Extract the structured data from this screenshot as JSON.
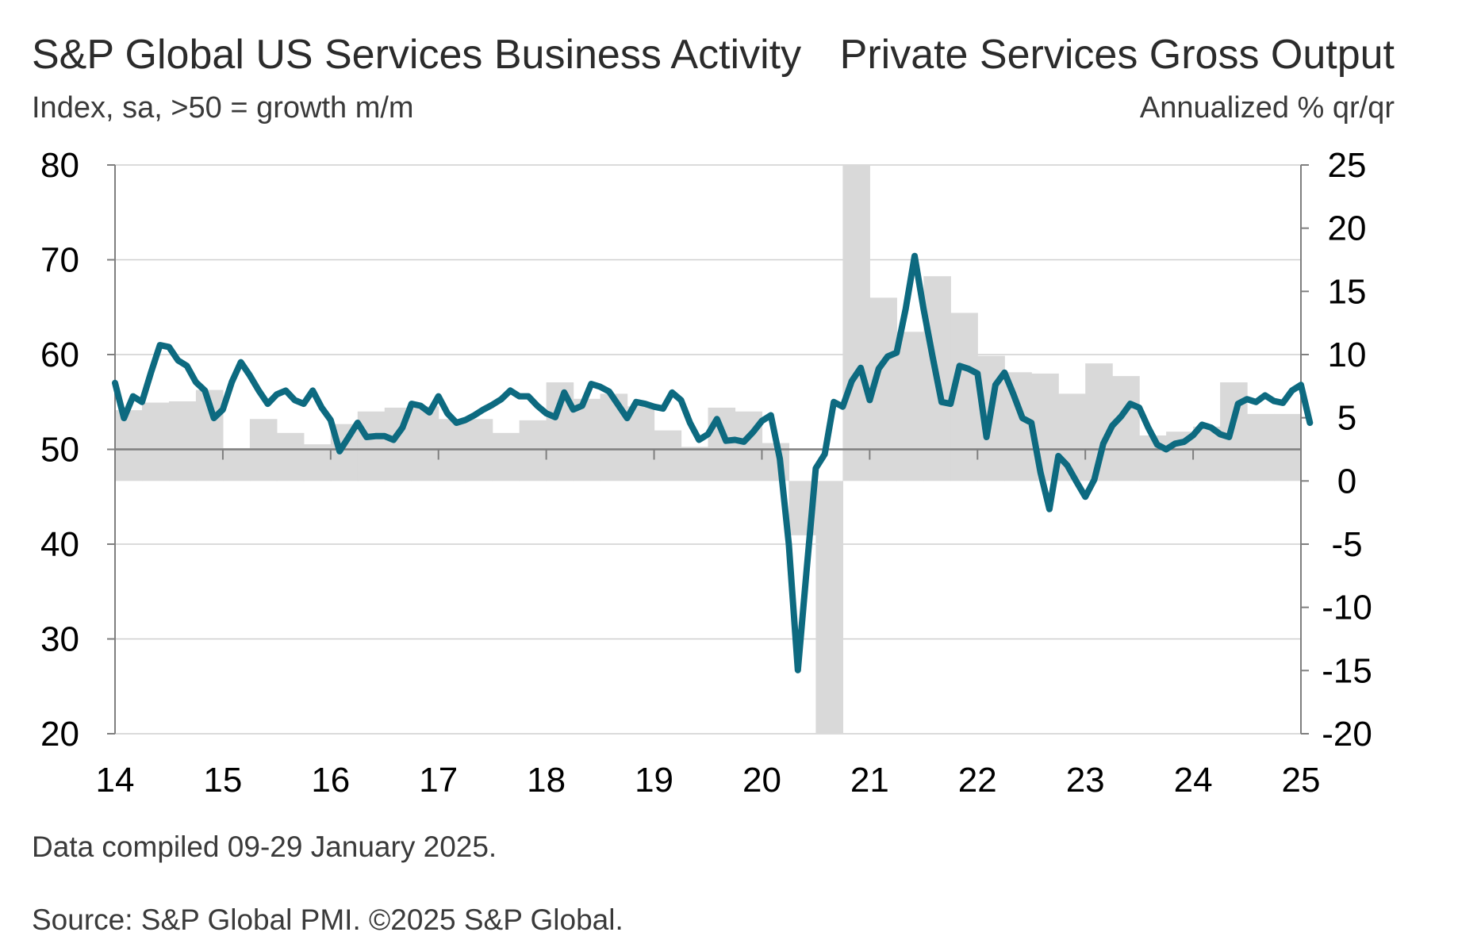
{
  "chart_data": {
    "type": "line+bar",
    "series": [
      {
        "axis": "left",
        "kind": "line",
        "color": "#0d6a80",
        "values": [
          {
            "x": "2014-01",
            "y": 57.0
          },
          {
            "x": "2014-02",
            "y": 53.3
          },
          {
            "x": "2014-03",
            "y": 55.6
          },
          {
            "x": "2014-04",
            "y": 55.0
          },
          {
            "x": "2014-05",
            "y": 58.1
          },
          {
            "x": "2014-06",
            "y": 61.0
          },
          {
            "x": "2014-07",
            "y": 60.8
          },
          {
            "x": "2014-08",
            "y": 59.4
          },
          {
            "x": "2014-09",
            "y": 58.8
          },
          {
            "x": "2014-10",
            "y": 57.1
          },
          {
            "x": "2014-11",
            "y": 56.2
          },
          {
            "x": "2014-12",
            "y": 53.3
          },
          {
            "x": "2015-01",
            "y": 54.2
          },
          {
            "x": "2015-02",
            "y": 57.1
          },
          {
            "x": "2015-03",
            "y": 59.2
          },
          {
            "x": "2015-04",
            "y": 57.8
          },
          {
            "x": "2015-05",
            "y": 56.2
          },
          {
            "x": "2015-06",
            "y": 54.8
          },
          {
            "x": "2015-07",
            "y": 55.8
          },
          {
            "x": "2015-08",
            "y": 56.2
          },
          {
            "x": "2015-09",
            "y": 55.2
          },
          {
            "x": "2015-10",
            "y": 54.8
          },
          {
            "x": "2015-11",
            "y": 56.2
          },
          {
            "x": "2015-12",
            "y": 54.4
          },
          {
            "x": "2016-01",
            "y": 53.1
          },
          {
            "x": "2016-02",
            "y": 49.8
          },
          {
            "x": "2016-03",
            "y": 51.3
          },
          {
            "x": "2016-04",
            "y": 52.8
          },
          {
            "x": "2016-05",
            "y": 51.3
          },
          {
            "x": "2016-06",
            "y": 51.4
          },
          {
            "x": "2016-07",
            "y": 51.4
          },
          {
            "x": "2016-08",
            "y": 51.0
          },
          {
            "x": "2016-09",
            "y": 52.3
          },
          {
            "x": "2016-10",
            "y": 54.8
          },
          {
            "x": "2016-11",
            "y": 54.6
          },
          {
            "x": "2016-12",
            "y": 53.9
          },
          {
            "x": "2017-01",
            "y": 55.6
          },
          {
            "x": "2017-02",
            "y": 53.8
          },
          {
            "x": "2017-03",
            "y": 52.8
          },
          {
            "x": "2017-04",
            "y": 53.1
          },
          {
            "x": "2017-05",
            "y": 53.6
          },
          {
            "x": "2017-06",
            "y": 54.2
          },
          {
            "x": "2017-07",
            "y": 54.7
          },
          {
            "x": "2017-08",
            "y": 55.3
          },
          {
            "x": "2017-09",
            "y": 56.2
          },
          {
            "x": "2017-10",
            "y": 55.6
          },
          {
            "x": "2017-11",
            "y": 55.6
          },
          {
            "x": "2017-12",
            "y": 54.6
          },
          {
            "x": "2018-01",
            "y": 53.8
          },
          {
            "x": "2018-02",
            "y": 53.4
          },
          {
            "x": "2018-03",
            "y": 56.0
          },
          {
            "x": "2018-04",
            "y": 54.2
          },
          {
            "x": "2018-05",
            "y": 54.6
          },
          {
            "x": "2018-06",
            "y": 56.9
          },
          {
            "x": "2018-07",
            "y": 56.6
          },
          {
            "x": "2018-08",
            "y": 56.1
          },
          {
            "x": "2018-09",
            "y": 54.7
          },
          {
            "x": "2018-10",
            "y": 53.3
          },
          {
            "x": "2018-11",
            "y": 55.0
          },
          {
            "x": "2018-12",
            "y": 54.8
          },
          {
            "x": "2019-01",
            "y": 54.5
          },
          {
            "x": "2019-02",
            "y": 54.3
          },
          {
            "x": "2019-03",
            "y": 56.0
          },
          {
            "x": "2019-04",
            "y": 55.2
          },
          {
            "x": "2019-05",
            "y": 52.8
          },
          {
            "x": "2019-06",
            "y": 51.0
          },
          {
            "x": "2019-07",
            "y": 51.6
          },
          {
            "x": "2019-08",
            "y": 53.2
          },
          {
            "x": "2019-09",
            "y": 50.9
          },
          {
            "x": "2019-10",
            "y": 51.0
          },
          {
            "x": "2019-11",
            "y": 50.8
          },
          {
            "x": "2019-12",
            "y": 51.8
          },
          {
            "x": "2020-01",
            "y": 53.0
          },
          {
            "x": "2020-02",
            "y": 53.6
          },
          {
            "x": "2020-03",
            "y": 49.0
          },
          {
            "x": "2020-04",
            "y": 40.0
          },
          {
            "x": "2020-05",
            "y": 26.7
          },
          {
            "x": "2020-06",
            "y": 37.5
          },
          {
            "x": "2020-07",
            "y": 48.0
          },
          {
            "x": "2020-08",
            "y": 49.5
          },
          {
            "x": "2020-09",
            "y": 55.0
          },
          {
            "x": "2020-10",
            "y": 54.5
          },
          {
            "x": "2020-11",
            "y": 57.2
          },
          {
            "x": "2020-12",
            "y": 58.6
          },
          {
            "x": "2021-01",
            "y": 55.2
          },
          {
            "x": "2021-02",
            "y": 58.5
          },
          {
            "x": "2021-03",
            "y": 59.8
          },
          {
            "x": "2021-04",
            "y": 60.2
          },
          {
            "x": "2021-05",
            "y": 64.8
          },
          {
            "x": "2021-06",
            "y": 70.4
          },
          {
            "x": "2021-07",
            "y": 64.8
          },
          {
            "x": "2021-08",
            "y": 59.8
          },
          {
            "x": "2021-09",
            "y": 55.0
          },
          {
            "x": "2021-10",
            "y": 54.8
          },
          {
            "x": "2021-11",
            "y": 58.8
          },
          {
            "x": "2021-12",
            "y": 58.5
          },
          {
            "x": "2022-01",
            "y": 58.0
          },
          {
            "x": "2022-02",
            "y": 51.3
          },
          {
            "x": "2022-03",
            "y": 56.8
          },
          {
            "x": "2022-04",
            "y": 58.1
          },
          {
            "x": "2022-05",
            "y": 55.8
          },
          {
            "x": "2022-06",
            "y": 53.3
          },
          {
            "x": "2022-07",
            "y": 52.8
          },
          {
            "x": "2022-08",
            "y": 47.6
          },
          {
            "x": "2022-09",
            "y": 43.7
          },
          {
            "x": "2022-10",
            "y": 49.3
          },
          {
            "x": "2022-11",
            "y": 48.3
          },
          {
            "x": "2022-12",
            "y": 46.6
          },
          {
            "x": "2023-01",
            "y": 45.0
          },
          {
            "x": "2023-02",
            "y": 46.8
          },
          {
            "x": "2023-03",
            "y": 50.6
          },
          {
            "x": "2023-04",
            "y": 52.5
          },
          {
            "x": "2023-05",
            "y": 53.5
          },
          {
            "x": "2023-06",
            "y": 54.8
          },
          {
            "x": "2023-07",
            "y": 54.4
          },
          {
            "x": "2023-08",
            "y": 52.3
          },
          {
            "x": "2023-09",
            "y": 50.5
          },
          {
            "x": "2023-10",
            "y": 50.0
          },
          {
            "x": "2023-11",
            "y": 50.6
          },
          {
            "x": "2023-12",
            "y": 50.8
          },
          {
            "x": "2024-01",
            "y": 51.5
          },
          {
            "x": "2024-02",
            "y": 52.6
          },
          {
            "x": "2024-03",
            "y": 52.3
          },
          {
            "x": "2024-04",
            "y": 51.6
          },
          {
            "x": "2024-05",
            "y": 51.3
          },
          {
            "x": "2024-06",
            "y": 54.8
          },
          {
            "x": "2024-07",
            "y": 55.3
          },
          {
            "x": "2024-08",
            "y": 55.0
          },
          {
            "x": "2024-09",
            "y": 55.7
          },
          {
            "x": "2024-10",
            "y": 55.1
          },
          {
            "x": "2024-11",
            "y": 54.9
          },
          {
            "x": "2024-12",
            "y": 56.2
          },
          {
            "x": "2025-01",
            "y": 56.8
          },
          {
            "x": "2025-02",
            "y": 52.8
          }
        ]
      },
      {
        "axis": "right",
        "kind": "bar",
        "color": "#d9d9d9",
        "values": [
          {
            "x": "2014-Q1",
            "y": 5.6
          },
          {
            "x": "2014-Q2",
            "y": 6.2
          },
          {
            "x": "2014-Q3",
            "y": 6.3
          },
          {
            "x": "2014-Q4",
            "y": 7.2
          },
          {
            "x": "2015-Q1",
            "y": 2.6
          },
          {
            "x": "2015-Q2",
            "y": 4.9
          },
          {
            "x": "2015-Q3",
            "y": 3.8
          },
          {
            "x": "2015-Q4",
            "y": 2.9
          },
          {
            "x": "2016-Q1",
            "y": 4.5
          },
          {
            "x": "2016-Q2",
            "y": 5.5
          },
          {
            "x": "2016-Q3",
            "y": 5.8
          },
          {
            "x": "2016-Q4",
            "y": 5.9
          },
          {
            "x": "2017-Q1",
            "y": 4.9
          },
          {
            "x": "2017-Q2",
            "y": 4.9
          },
          {
            "x": "2017-Q3",
            "y": 3.8
          },
          {
            "x": "2017-Q4",
            "y": 4.8
          },
          {
            "x": "2018-Q1",
            "y": 7.8
          },
          {
            "x": "2018-Q2",
            "y": 6.5
          },
          {
            "x": "2018-Q3",
            "y": 6.9
          },
          {
            "x": "2018-Q4",
            "y": 5.9
          },
          {
            "x": "2019-Q1",
            "y": 4.0
          },
          {
            "x": "2019-Q2",
            "y": 2.7
          },
          {
            "x": "2019-Q3",
            "y": 5.8
          },
          {
            "x": "2019-Q4",
            "y": 5.5
          },
          {
            "x": "2020-Q1",
            "y": 3.0
          },
          {
            "x": "2020-Q2",
            "y": -4.3
          },
          {
            "x": "2020-Q3",
            "y": -20.0
          },
          {
            "x": "2020-Q4",
            "y": 25.0
          },
          {
            "x": "2021-Q1",
            "y": 14.5
          },
          {
            "x": "2021-Q2",
            "y": 11.8
          },
          {
            "x": "2021-Q3",
            "y": 16.2
          },
          {
            "x": "2021-Q4",
            "y": 13.3
          },
          {
            "x": "2022-Q1",
            "y": 9.9
          },
          {
            "x": "2022-Q2",
            "y": 8.6
          },
          {
            "x": "2022-Q3",
            "y": 8.5
          },
          {
            "x": "2022-Q4",
            "y": 6.9
          },
          {
            "x": "2023-Q1",
            "y": 9.3
          },
          {
            "x": "2023-Q2",
            "y": 8.3
          },
          {
            "x": "2023-Q3",
            "y": 3.6
          },
          {
            "x": "2023-Q4",
            "y": 3.9
          },
          {
            "x": "2024-Q1",
            "y": 4.3
          },
          {
            "x": "2024-Q2",
            "y": 7.8
          },
          {
            "x": "2024-Q3",
            "y": 5.3
          },
          {
            "x": "2024-Q4",
            "y": 5.3
          }
        ]
      }
    ],
    "title_left": "S&P Global US Services Business Activity",
    "subtitle_left": "Index, sa, >50 = growth m/m",
    "title_right": "Private Services Gross Output",
    "subtitle_right": "Annualized % qr/qr",
    "x_ticks": [
      "14",
      "15",
      "16",
      "17",
      "18",
      "19",
      "20",
      "21",
      "22",
      "23",
      "24",
      "25"
    ],
    "x_range": [
      "2014-01",
      "2025-01"
    ],
    "y_left": {
      "range": [
        20,
        80
      ],
      "ticks": [
        "80",
        "70",
        "60",
        "50",
        "40",
        "30",
        "20"
      ],
      "reference": 50
    },
    "y_right": {
      "range": [
        -20,
        25
      ],
      "ticks": [
        "25",
        "20",
        "15",
        "10",
        "5",
        "0",
        "-5",
        "-10",
        "-15",
        "-20"
      ]
    },
    "grid": "horizontal",
    "legend": "none"
  },
  "footer": {
    "compiled": "Data compiled 09-29 January 2025.",
    "source": "Source: S&P Global PMI. ©2025 S&P Global."
  }
}
